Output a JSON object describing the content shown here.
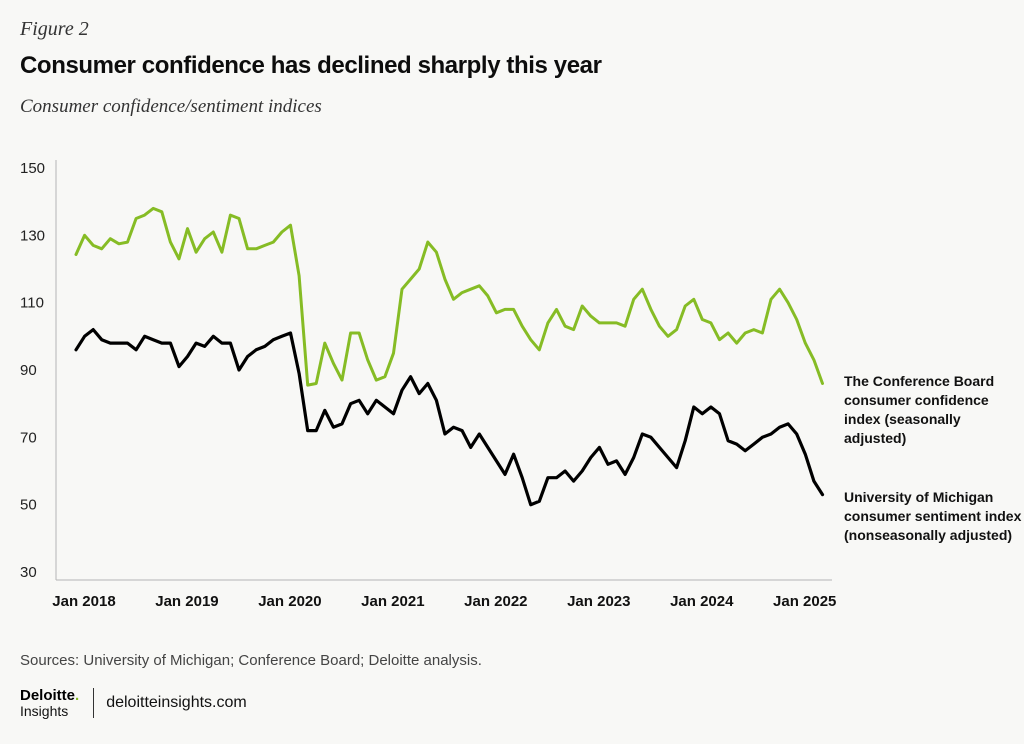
{
  "figure_label": "Figure 2",
  "title": "Consumer confidence has declined sharply this year",
  "subtitle": "Consumer confidence/sentiment indices",
  "source": "Sources: University of Michigan; Conference Board; Deloitte analysis.",
  "footer": {
    "brand": "Deloitte",
    "brand_dot": ".",
    "brand_sub": "Insights",
    "site": "deloitteinsights.com"
  },
  "colors": {
    "conference_board": "#86bc25",
    "michigan": "#000000",
    "background": "#f8f8f6"
  },
  "chart_data": {
    "type": "line",
    "title": "",
    "xlabel": "",
    "ylabel": "",
    "ylim": [
      30,
      150
    ],
    "yticks": [
      "150",
      "130",
      "110",
      "90",
      "70",
      "50",
      "30"
    ],
    "xticks": [
      "Jan 2018",
      "Jan 2019",
      "Jan 2020",
      "Jan 2021",
      "Jan 2022",
      "Jan 2023",
      "Jan 2024",
      "Jan 2025"
    ],
    "x_start": "Jan 2018",
    "x_end": "Mar 2025",
    "grid": false,
    "legend": "right-inline",
    "series": [
      {
        "name": "The Conference Board consumer confidence index (seasonally adjusted)",
        "label_lines": [
          "The Conference Board",
          "consumer confidence",
          "index (seasonally",
          "adjusted)"
        ],
        "values": [
          124.3,
          130,
          127,
          126,
          129,
          127.5,
          128,
          135,
          136,
          138,
          137,
          128,
          123,
          132,
          125,
          129,
          131,
          125,
          136,
          135,
          126,
          126,
          127,
          128,
          131,
          133,
          118,
          85.5,
          86,
          98,
          92,
          87,
          101,
          101,
          93,
          87,
          88,
          95,
          114,
          117,
          120,
          128,
          125,
          117,
          111,
          113,
          114,
          115,
          112,
          107,
          108,
          108,
          103,
          99,
          96,
          104,
          108,
          103,
          102,
          109,
          106,
          104,
          104,
          104,
          103,
          111,
          114,
          108,
          103,
          100,
          102,
          109,
          111,
          105,
          104,
          99,
          101,
          98,
          101,
          102,
          101,
          111,
          114,
          110,
          105,
          98,
          93,
          86
        ]
      },
      {
        "name": "University of Michigan consumer sentiment index (nonseasonally adjusted)",
        "label_lines": [
          "University of Michigan",
          "consumer sentiment index",
          "(nonseasonally adjusted)"
        ],
        "values": [
          96,
          100,
          102,
          99,
          98,
          98,
          98,
          96,
          100,
          99,
          98,
          98,
          91,
          94,
          98,
          97,
          100,
          98,
          98,
          90,
          94,
          96,
          97,
          99,
          100,
          101,
          89,
          72,
          72,
          78,
          73,
          74,
          80,
          81,
          77,
          81,
          79,
          77,
          84,
          88,
          83,
          86,
          81,
          71,
          73,
          72,
          67,
          71,
          67,
          63,
          59,
          65,
          58,
          50,
          51,
          58,
          58,
          60,
          57,
          60,
          64,
          67,
          62,
          63,
          59,
          64,
          71,
          70,
          67,
          64,
          61,
          69,
          79,
          77,
          79,
          77,
          69,
          68,
          66,
          68,
          70,
          71,
          73,
          74,
          71,
          65,
          57,
          53
        ]
      }
    ]
  }
}
